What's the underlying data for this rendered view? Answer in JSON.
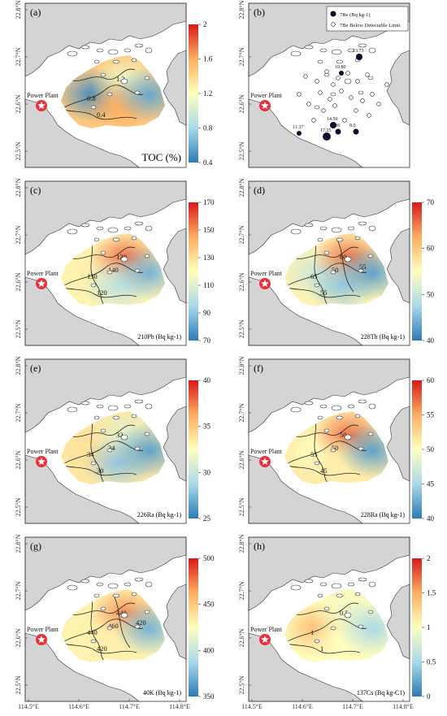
{
  "axes": {
    "lat_ticks": [
      "22.8°N",
      "22.7°N",
      "22.6°N",
      "22.5°N"
    ],
    "lon_ticks": [
      "114.5°E",
      "114.6°E",
      "114.7°E",
      "114.8°E"
    ]
  },
  "colors": {
    "land": "#d4d4d4",
    "sea": "#ffffff",
    "colormap": [
      "#2c7bb6",
      "#abd9e9",
      "#ffffbf",
      "#fdae61",
      "#d7191c"
    ],
    "marker": "#e8303a",
    "be_dot": "#0b0b2e"
  },
  "marker_label": "Power Plant",
  "panels": [
    {
      "id": "a",
      "label": "(a)",
      "unit_label": "TOC (%)",
      "cbar": [
        "2",
        "1.6",
        "1.2",
        "0.8",
        "0.4"
      ],
      "contours": [
        "0.8",
        "1.2",
        "0.4"
      ],
      "field": [
        [
          0.05,
          0.62
        ],
        [
          0.45,
          0.7
        ],
        [
          0.75,
          0.8
        ],
        [
          0.12,
          0.55
        ]
      ]
    },
    {
      "id": "b",
      "label": "(b)",
      "legend": [
        "7Be (Bq kg-1)",
        "7Be Below Detectable Limit"
      ],
      "be_values": [
        "13.73",
        "10.80",
        "14.50",
        "17.25",
        "8.00",
        "11.37",
        "8.0"
      ]
    },
    {
      "id": "c",
      "label": "(c)",
      "unit_label": "210Pb (Bq kg-1)",
      "cbar": [
        "170",
        "150",
        "130",
        "110",
        "90",
        "70"
      ],
      "contours": [
        "130",
        "120",
        "120",
        "140"
      ],
      "field": [
        [
          0.55,
          0.65
        ],
        [
          0.85,
          0.7
        ],
        [
          0.3,
          0.3
        ],
        [
          0.15,
          0.5
        ]
      ]
    },
    {
      "id": "d",
      "label": "(d)",
      "unit_label": "228Th (Bq kg-1)",
      "cbar": [
        "70",
        "60",
        "50",
        "40"
      ],
      "contours": [
        "65",
        "60",
        "55",
        "50",
        "55"
      ],
      "field": [
        [
          0.35,
          0.55
        ],
        [
          0.85,
          0.65
        ],
        [
          0.2,
          0.35
        ],
        [
          0.1,
          0.6
        ]
      ]
    },
    {
      "id": "e",
      "label": "(e)",
      "unit_label": "226Ra (Bq kg-1)",
      "cbar": [
        "40",
        "35",
        "30",
        "25"
      ],
      "contours": [
        "34",
        "32",
        "30",
        "34"
      ],
      "field": [
        [
          0.6,
          0.65
        ],
        [
          0.4,
          0.6
        ],
        [
          0.2,
          0.55
        ],
        [
          0.1,
          0.5
        ]
      ]
    },
    {
      "id": "f",
      "label": "(f)",
      "unit_label": "228Ra (Bq kg-1)",
      "cbar": [
        "60",
        "55",
        "50",
        "45",
        "40"
      ],
      "contours": [
        "55",
        "50",
        "45",
        "50"
      ],
      "field": [
        [
          0.5,
          0.65
        ],
        [
          0.85,
          0.7
        ],
        [
          0.55,
          0.4
        ],
        [
          0.1,
          0.5
        ]
      ]
    },
    {
      "id": "g",
      "label": "(g)",
      "unit_label": "40K (Bq kg-1)",
      "cbar": [
        "500",
        "450",
        "400",
        "350"
      ],
      "contours": [
        "440",
        "440",
        "420",
        "460",
        "420"
      ],
      "field": [
        [
          0.55,
          0.6
        ],
        [
          0.8,
          0.7
        ],
        [
          0.55,
          0.35
        ],
        [
          0.15,
          0.5
        ]
      ]
    },
    {
      "id": "h",
      "label": "(h)",
      "unit_label": "137Cs (Bq kg-C1)",
      "cbar": [
        "2",
        "1.5",
        "1",
        "0.5",
        "0"
      ],
      "contours": [
        "1",
        "0.5",
        "1"
      ],
      "field": [
        [
          0.7,
          0.75
        ],
        [
          0.45,
          0.55
        ],
        [
          0.5,
          0.35
        ],
        [
          0.25,
          0.4
        ]
      ]
    }
  ]
}
